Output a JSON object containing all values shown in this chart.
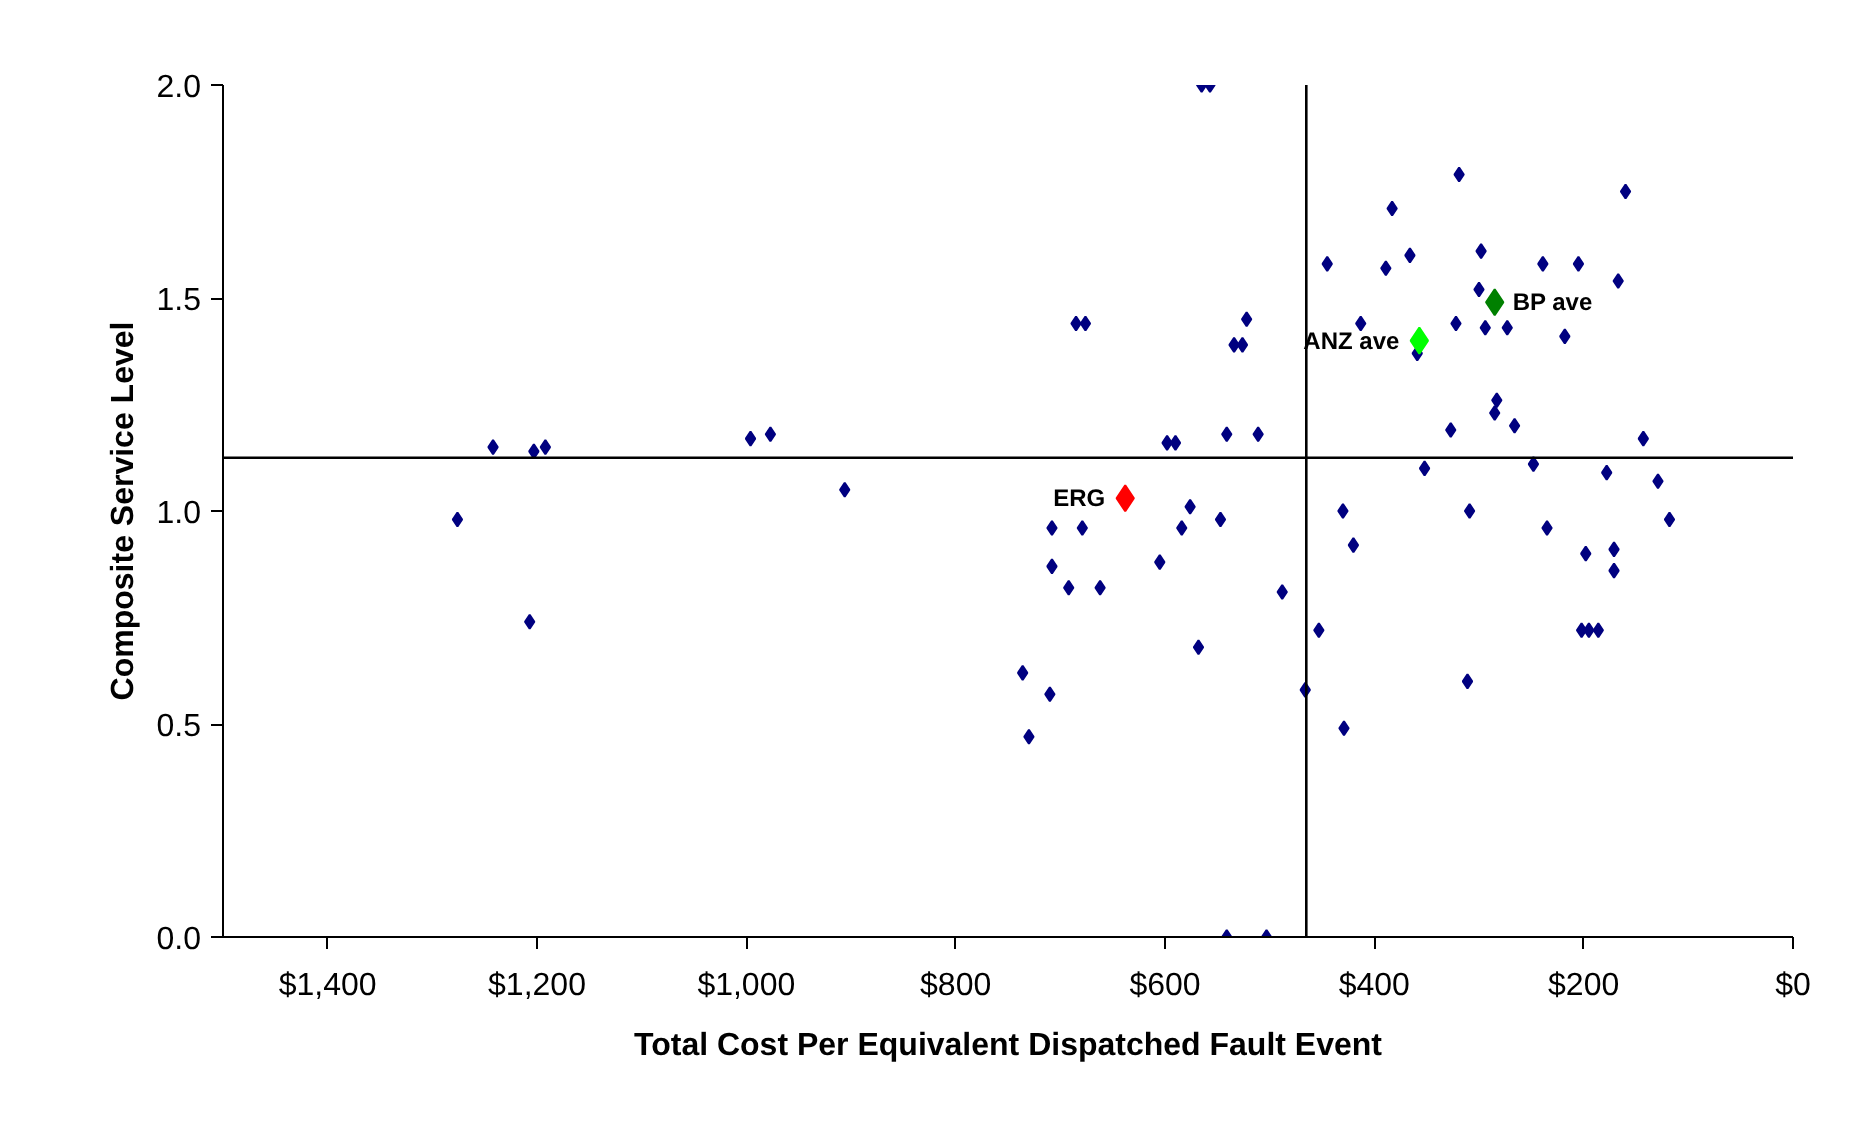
{
  "chart_data": {
    "type": "scatter",
    "xlabel": "Total Cost Per Equivalent Dispatched Fault Event",
    "ylabel": "Composite Service Level",
    "xlim": [
      1500,
      0
    ],
    "ylim": [
      0,
      2
    ],
    "xticks": [
      {
        "value": 1400,
        "label": "$1,400"
      },
      {
        "value": 1200,
        "label": "$1,200"
      },
      {
        "value": 1000,
        "label": "$1,000"
      },
      {
        "value": 800,
        "label": "$800"
      },
      {
        "value": 600,
        "label": "$600"
      },
      {
        "value": 400,
        "label": "$400"
      },
      {
        "value": 200,
        "label": "$200"
      },
      {
        "value": 0,
        "label": "$0"
      }
    ],
    "yticks": [
      {
        "value": 0,
        "label": "0.0"
      },
      {
        "value": 0.5,
        "label": "0.5"
      },
      {
        "value": 1,
        "label": "1.0"
      },
      {
        "value": 1.5,
        "label": "1.5"
      },
      {
        "value": 2,
        "label": "2.0"
      }
    ],
    "grid": false,
    "marker": "diamond",
    "ref_lines": [
      {
        "axis": "x",
        "value": 465,
        "color": "#000000"
      },
      {
        "axis": "y",
        "value": 1.125,
        "color": "#000000"
      }
    ],
    "series": [
      {
        "color": "#000080",
        "x": [
          1242,
          1203,
          1192,
          996,
          977,
          1276,
          906,
          1207,
          736,
          730,
          565,
          557,
          383,
          445,
          389,
          685,
          676,
          522,
          534,
          526,
          413,
          598,
          590,
          541,
          511,
          319,
          160,
          366,
          298,
          239,
          205,
          167,
          300,
          322,
          294,
          273,
          218,
          359,
          283,
          285,
          266,
          327,
          143,
          352,
          248,
          178,
          129,
          576,
          708,
          679,
          584,
          547,
          430,
          420,
          708,
          605,
          692,
          662,
          488,
          453,
          568,
          710,
          466,
          429,
          541,
          503,
          309,
          235,
          118,
          198,
          171,
          171,
          202,
          195,
          186,
          311
        ],
        "values": [
          1.15,
          1.14,
          1.15,
          1.17,
          1.18,
          0.98,
          1.05,
          0.74,
          0.62,
          0.47,
          2.0,
          2.0,
          1.71,
          1.58,
          1.57,
          1.44,
          1.44,
          1.45,
          1.39,
          1.39,
          1.44,
          1.16,
          1.16,
          1.18,
          1.18,
          1.79,
          1.75,
          1.6,
          1.61,
          1.58,
          1.58,
          1.54,
          1.52,
          1.44,
          1.43,
          1.43,
          1.41,
          1.37,
          1.26,
          1.23,
          1.2,
          1.19,
          1.17,
          1.1,
          1.11,
          1.09,
          1.07,
          1.01,
          0.96,
          0.96,
          0.96,
          0.98,
          1.0,
          0.92,
          0.87,
          0.88,
          0.82,
          0.82,
          0.81,
          0.72,
          0.68,
          0.57,
          0.58,
          0.49,
          0.0,
          0.0,
          1.0,
          0.96,
          0.98,
          0.9,
          0.91,
          0.86,
          0.72,
          0.72,
          0.72,
          0.6
        ]
      },
      {
        "name": "ERG",
        "color": "#ff0000",
        "x": [
          638
        ],
        "values": [
          1.03
        ]
      },
      {
        "name": "ANZ ave",
        "color": "#00ff00",
        "x": [
          357
        ],
        "values": [
          1.4
        ]
      },
      {
        "name": "BP ave",
        "color": "#008000",
        "x": [
          285
        ],
        "values": [
          1.49
        ]
      }
    ]
  }
}
